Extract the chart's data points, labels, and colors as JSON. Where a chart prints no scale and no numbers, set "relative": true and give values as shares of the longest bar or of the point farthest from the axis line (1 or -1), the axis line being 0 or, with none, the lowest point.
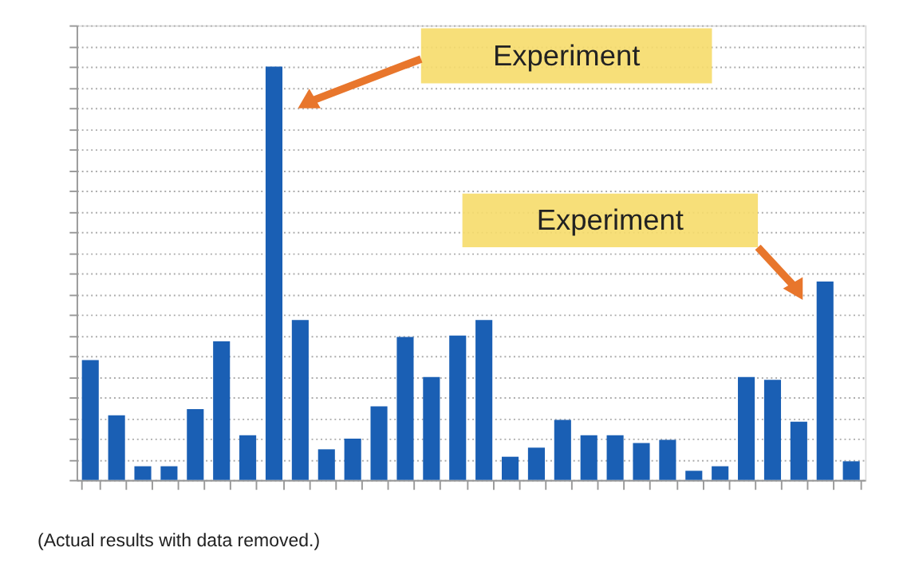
{
  "chart_data": {
    "type": "bar",
    "relative": true,
    "color": "#1a5fb4",
    "categories": [
      null,
      null,
      null,
      null,
      null,
      null,
      null,
      null,
      null,
      null,
      null,
      null,
      null,
      null,
      null,
      null,
      null,
      null,
      null,
      null,
      null,
      null,
      null,
      null,
      null,
      null,
      null,
      null,
      null,
      null
    ],
    "values": [
      0.29,
      0.156,
      0.033,
      0.033,
      0.171,
      0.335,
      0.108,
      1,
      0.387,
      0.074,
      0.1,
      0.178,
      0.346,
      0.249,
      0.349,
      0.387,
      0.056,
      0.078,
      0.145,
      0.108,
      0.108,
      0.089,
      0.097,
      0.022,
      0.033,
      0.249,
      0.242,
      0.141,
      0.48,
      0.045
    ],
    "grid": "y",
    "annotations": [
      "Experiment",
      "Experiment",
      "(Actual results with data removed.)"
    ]
  }
}
